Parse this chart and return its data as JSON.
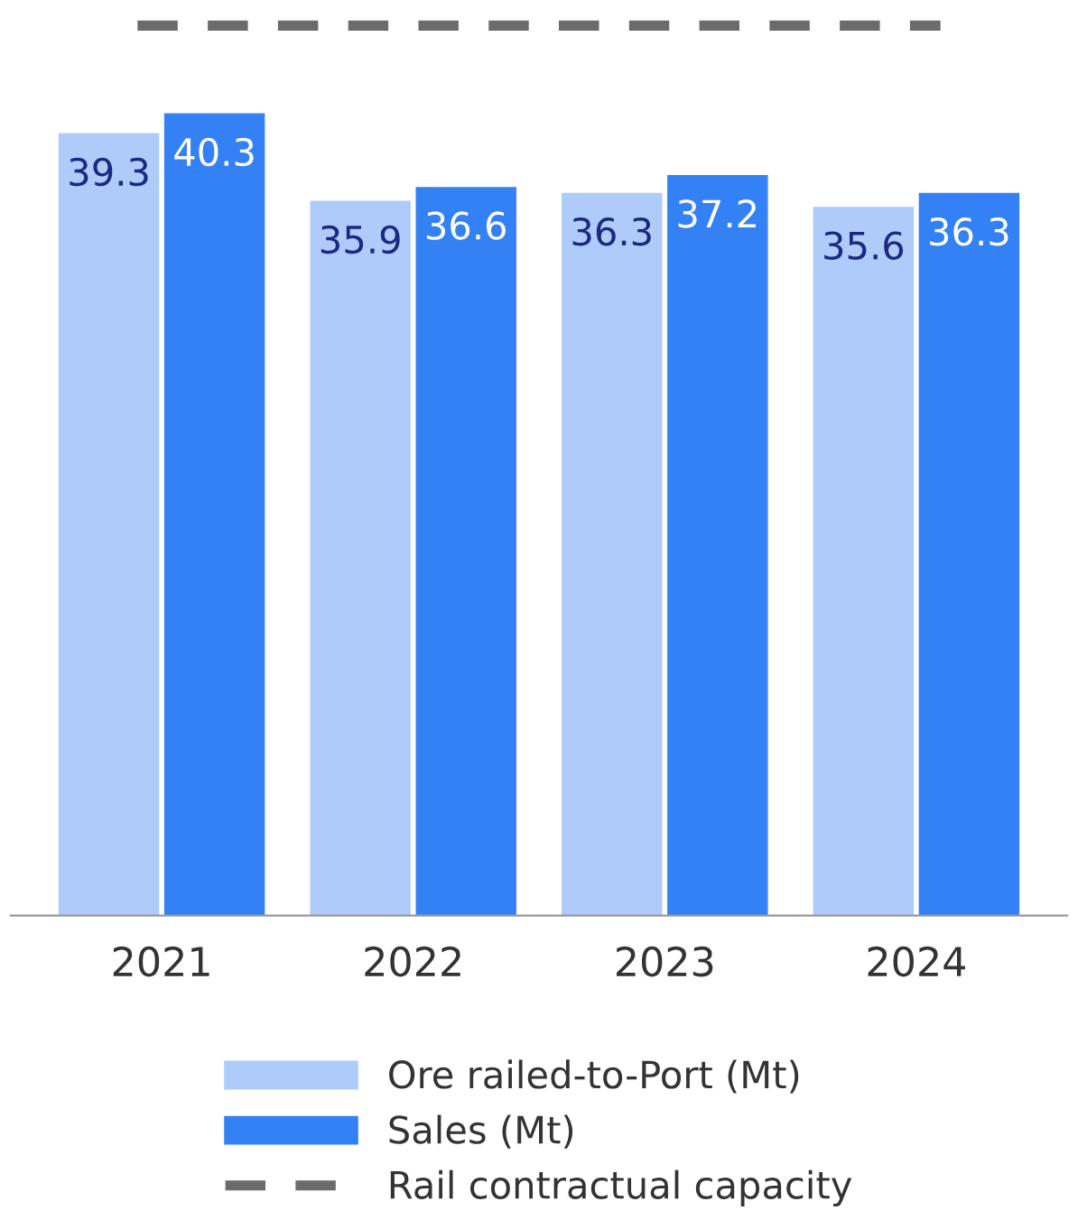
{
  "chart_data": {
    "type": "bar",
    "categories": [
      "2021",
      "2022",
      "2023",
      "2024"
    ],
    "series": [
      {
        "name": "Ore railed-to-Port (Mt)",
        "color": "#aecbfa",
        "values": [
          39.3,
          35.9,
          36.3,
          35.6
        ]
      },
      {
        "name": "Sales (Mt)",
        "color": "#3481f5",
        "values": [
          40.3,
          36.6,
          37.2,
          36.3
        ]
      }
    ],
    "ref_lines": [
      {
        "axis": "y",
        "value": 44.7,
        "label": "Rail contractual capacity",
        "color": "#6b6b6b",
        "line_style": "dashed"
      }
    ],
    "data_labels": true,
    "legend": "bottom",
    "grid": false
  }
}
